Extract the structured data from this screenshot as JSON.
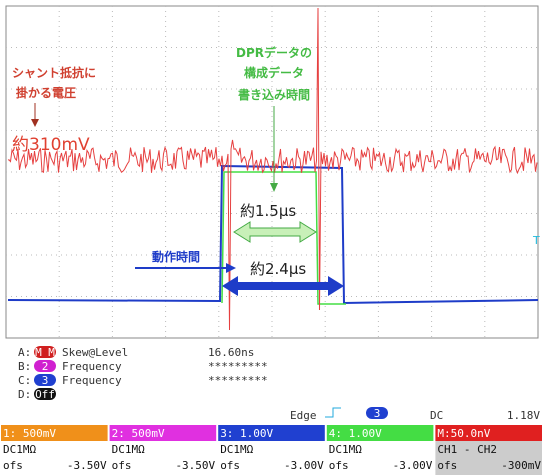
{
  "annotations": {
    "shunt_label": [
      "シャント抵抗に",
      "掛かる電圧"
    ],
    "voltage": "約310mV",
    "dpr_label": [
      "DPRデータの",
      "構成データ",
      "書き込み時間"
    ],
    "time_1": "約1.5µs",
    "operation_label": "動作時間",
    "time_2": "約2.4µs",
    "trigger_marker": "T"
  },
  "measurements": [
    {
      "slot": "A:",
      "badge": "M M",
      "name": "Skew@Level",
      "value": "16.60ns"
    },
    {
      "slot": "B:",
      "badge": "2",
      "name": "Frequency",
      "value": "*********"
    },
    {
      "slot": "C:",
      "badge": "3",
      "name": "Frequency",
      "value": "*********"
    },
    {
      "slot": "D:",
      "badge": "Off"
    }
  ],
  "trigger": {
    "mode": "Edge",
    "source": "3",
    "coupling": "DC",
    "level": "1.18V"
  },
  "channels": [
    {
      "label": "1: 500mV",
      "coupling": "DC1MΩ",
      "offset_label": "ofs",
      "offset": "-3.50V"
    },
    {
      "label": "2: 500mV",
      "coupling": "DC1MΩ",
      "offset_label": "ofs",
      "offset": "-3.50V"
    },
    {
      "label": "3: 1.00V",
      "coupling": "DC1MΩ",
      "offset_label": "ofs",
      "offset": "-3.00V"
    },
    {
      "label": "4: 1.00V",
      "coupling": "DC1MΩ",
      "offset_label": "ofs",
      "offset": "-3.00V"
    },
    {
      "label": "M:50.0nV",
      "coupling": "CH1 - CH2",
      "offset_label": "ofs",
      "offset": "-300mV"
    }
  ]
}
